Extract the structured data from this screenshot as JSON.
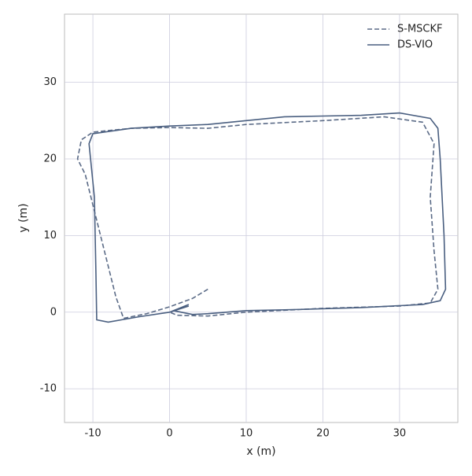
{
  "chart_data": {
    "type": "line",
    "xlabel": "x (m)",
    "ylabel": "y (m)",
    "xlim": [
      -13.7,
      37.6
    ],
    "ylim": [
      -14.4,
      38.9
    ],
    "xticks": [
      -10,
      0,
      10,
      20,
      30
    ],
    "yticks": [
      -10,
      0,
      10,
      20,
      30
    ],
    "grid": true,
    "legend": "upper right",
    "series": [
      {
        "name": "S-MSCKF",
        "color": "#5b6b87",
        "dash": true,
        "x": [
          5,
          3,
          0,
          -3,
          -6,
          -7,
          -8.5,
          -10,
          -11,
          -12,
          -11.5,
          -10,
          -5,
          0,
          5,
          10,
          20,
          28,
          33,
          34.5,
          34,
          34.5,
          35,
          34,
          30,
          20,
          10,
          5,
          1,
          0
        ],
        "values": [
          3,
          1.8,
          0.7,
          -0.2,
          -0.8,
          2,
          8,
          14,
          18,
          20,
          22.5,
          23.5,
          24,
          24.1,
          24,
          24.5,
          25,
          25.5,
          24.8,
          22,
          15,
          8,
          3,
          1.2,
          0.8,
          0.5,
          0,
          -0.5,
          -0.4,
          0
        ]
      },
      {
        "name": "DS-VIO",
        "color": "#4a5f80",
        "dash": false,
        "x": [
          2.5,
          0,
          -4,
          -8,
          -9.5,
          -9.6,
          -9.8,
          -10.5,
          -10,
          -5,
          0,
          5,
          10,
          15,
          20,
          25,
          30,
          34,
          35,
          35.3,
          35.8,
          36,
          35.3,
          33,
          25,
          15,
          10,
          5,
          3,
          0.5,
          2.5
        ],
        "values": [
          0.8,
          0,
          -0.6,
          -1.3,
          -1,
          5,
          15,
          22,
          23.3,
          24,
          24.3,
          24.5,
          25,
          25.5,
          25.6,
          25.7,
          26,
          25.3,
          24,
          20,
          10,
          3,
          1.5,
          1,
          0.6,
          0.3,
          0.2,
          -0.2,
          -0.3,
          0.2,
          1
        ]
      }
    ]
  }
}
